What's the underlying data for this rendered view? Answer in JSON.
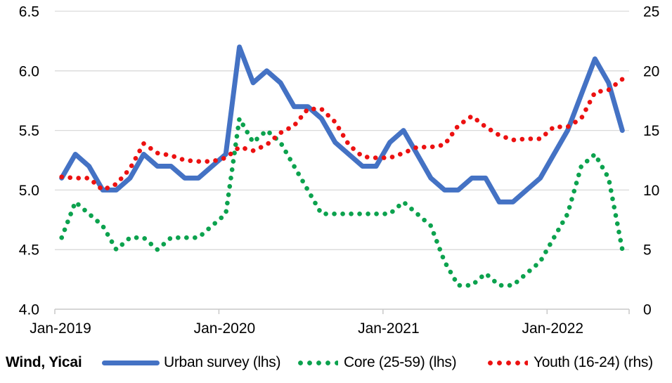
{
  "source_label": "Wind, Yicai",
  "colors": {
    "urban_blue": "#4472C4",
    "core_green": "#0CA24E",
    "youth_red": "#EC1111",
    "gridline": "#D9D9D9",
    "axis_line": "#C9C9C9",
    "text": "#000000",
    "background": "#FFFFFF"
  },
  "chart_data": {
    "type": "line",
    "title": "",
    "xlabel": "",
    "ylabel_left": "",
    "ylabel_right": "",
    "grid": "horizontal",
    "legend_position": "bottom",
    "x": [
      "Jan-2019",
      "Feb-2019",
      "Mar-2019",
      "Apr-2019",
      "May-2019",
      "Jun-2019",
      "Jul-2019",
      "Aug-2019",
      "Sep-2019",
      "Oct-2019",
      "Nov-2019",
      "Dec-2019",
      "Jan-2020",
      "Feb-2020",
      "Mar-2020",
      "Apr-2020",
      "May-2020",
      "Jun-2020",
      "Jul-2020",
      "Aug-2020",
      "Sep-2020",
      "Oct-2020",
      "Nov-2020",
      "Dec-2020",
      "Jan-2021",
      "Feb-2021",
      "Mar-2021",
      "Apr-2021",
      "May-2021",
      "Jun-2021",
      "Jul-2021",
      "Aug-2021",
      "Sep-2021",
      "Oct-2021",
      "Nov-2021",
      "Dec-2021",
      "Jan-2022",
      "Feb-2022",
      "Mar-2022",
      "Apr-2022",
      "May-2022",
      "Jun-2022"
    ],
    "x_ticks": [
      {
        "label": "Jan-2019",
        "index": 0
      },
      {
        "label": "Jan-2020",
        "index": 12
      },
      {
        "label": "Jan-2021",
        "index": 24
      },
      {
        "label": "Jan-2022",
        "index": 36
      }
    ],
    "left_axis": {
      "min": 4.0,
      "max": 6.5,
      "ticks": [
        "4.0",
        "4.5",
        "5.0",
        "5.5",
        "6.0",
        "6.5"
      ]
    },
    "right_axis": {
      "min": 0,
      "max": 25,
      "ticks": [
        "0",
        "5",
        "10",
        "15",
        "20",
        "25"
      ]
    },
    "series": [
      {
        "name": "Urban survey (lhs)",
        "axis": "left",
        "style": "solid",
        "color": "#4472C4",
        "values": [
          5.1,
          5.3,
          5.2,
          5.0,
          5.0,
          5.1,
          5.3,
          5.2,
          5.2,
          5.1,
          5.1,
          5.2,
          5.3,
          6.2,
          5.9,
          6.0,
          5.9,
          5.7,
          5.7,
          5.6,
          5.4,
          5.3,
          5.2,
          5.2,
          5.4,
          5.5,
          5.3,
          5.1,
          5.0,
          5.0,
          5.1,
          5.1,
          4.9,
          4.9,
          5.0,
          5.1,
          5.3,
          5.5,
          5.8,
          6.1,
          5.9,
          5.5
        ]
      },
      {
        "name": "Core (25-59) (lhs)",
        "axis": "left",
        "style": "dotted",
        "color": "#0CA24E",
        "values": [
          4.6,
          4.9,
          4.8,
          4.7,
          4.5,
          4.6,
          4.6,
          4.5,
          4.6,
          4.6,
          4.6,
          4.7,
          4.8,
          5.6,
          5.4,
          5.5,
          5.4,
          5.2,
          5.0,
          4.8,
          4.8,
          4.8,
          4.8,
          4.8,
          4.8,
          4.9,
          4.8,
          4.7,
          4.4,
          4.2,
          4.2,
          4.3,
          4.2,
          4.2,
          4.3,
          4.4,
          4.6,
          4.8,
          5.2,
          5.3,
          5.1,
          4.5
        ]
      },
      {
        "name": "Youth (16-24) (rhs)",
        "axis": "right",
        "style": "dotted",
        "color": "#EC1111",
        "values": [
          11.1,
          11.0,
          11.0,
          10.0,
          10.5,
          11.8,
          13.9,
          13.1,
          12.9,
          12.5,
          12.4,
          12.4,
          12.7,
          13.6,
          13.3,
          13.8,
          14.8,
          15.4,
          16.8,
          16.8,
          15.7,
          13.8,
          12.8,
          12.7,
          12.7,
          13.1,
          13.6,
          13.6,
          13.8,
          15.4,
          16.2,
          15.3,
          14.6,
          14.2,
          14.3,
          14.3,
          15.3,
          15.3,
          16.0,
          18.2,
          18.4,
          19.3
        ]
      }
    ]
  },
  "legend": {
    "urban_label": "Urban survey (lhs)",
    "core_label": "Core (25-59) (lhs)",
    "youth_label": "Youth (16-24) (rhs)"
  }
}
